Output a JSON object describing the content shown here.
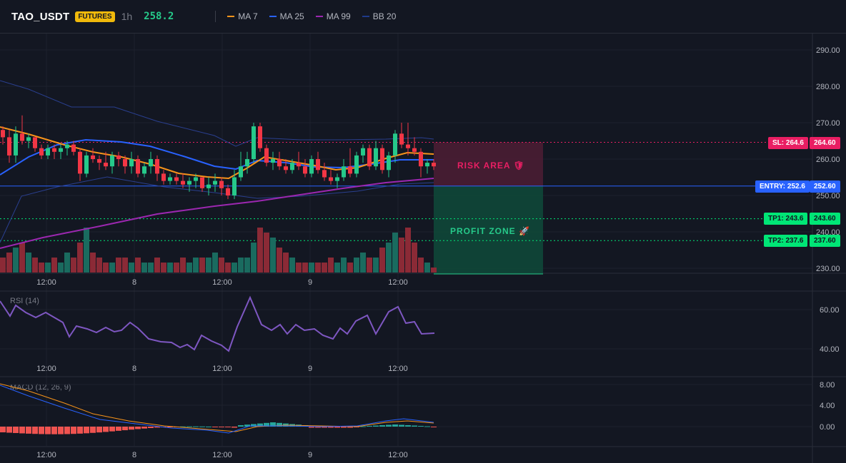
{
  "header": {
    "symbol": "TAO_USDT",
    "badge": "FUTURES",
    "timeframe": "1h",
    "last_price": "258.2"
  },
  "legend": [
    {
      "label": "MA 7",
      "color": "#f7931a"
    },
    {
      "label": "MA 25",
      "color": "#2962ff"
    },
    {
      "label": "MA 99",
      "color": "#9c27b0"
    },
    {
      "label": "BB 20",
      "color": "#1e3a8a"
    }
  ],
  "colors": {
    "up": "#26c98a",
    "down": "#f23645",
    "vol_up": "#1a6b5f",
    "vol_down": "#8b2a36",
    "sl": "#e91e63",
    "entry": "#2962ff",
    "tp": "#00e676"
  },
  "price_axis": {
    "labels": [
      "290.00",
      "280.00",
      "270.00",
      "260.00",
      "250.00",
      "240.00",
      "230.00"
    ]
  },
  "levels": {
    "sl": {
      "label": "SL: 264.6",
      "value": "264.60",
      "price": 264.6
    },
    "entry": {
      "label": "ENTRY: 252.6",
      "value": "252.60",
      "price": 252.6
    },
    "tp1": {
      "label": "TP1: 243.6",
      "value": "243.60",
      "price": 243.6
    },
    "tp2": {
      "label": "TP2: 237.6",
      "value": "237.60",
      "price": 237.6
    }
  },
  "zones": {
    "risk": "RISK AREA 🛡",
    "profit": "PROFIT ZONE 🚀"
  },
  "time_axis": [
    "12:00",
    "8",
    "12:00",
    "9",
    "12:00"
  ],
  "rsi": {
    "title": "RSI (14)",
    "axis": [
      "60.00",
      "40.00"
    ]
  },
  "macd": {
    "title": "MACD (12, 26, 9)",
    "axis": [
      "8.00",
      "4.00",
      "0.00"
    ]
  },
  "chart_data": {
    "type": "candlestick",
    "candles": [
      [
        268,
        269,
        264,
        266
      ],
      [
        266,
        268,
        259,
        261
      ],
      [
        261,
        269,
        259,
        267
      ],
      [
        267,
        272,
        264,
        265
      ],
      [
        265,
        267,
        263,
        266
      ],
      [
        266,
        266,
        262,
        263
      ],
      [
        263,
        264,
        260,
        261
      ],
      [
        261,
        264,
        260,
        263
      ],
      [
        263,
        264,
        260,
        262
      ],
      [
        262,
        264,
        260,
        263
      ],
      [
        263,
        265,
        261,
        264
      ],
      [
        264,
        265,
        261,
        262
      ],
      [
        262,
        263,
        254,
        256
      ],
      [
        256,
        262,
        255,
        261
      ],
      [
        261,
        263,
        259,
        260
      ],
      [
        260,
        261,
        257,
        259
      ],
      [
        259,
        262,
        257,
        258
      ],
      [
        258,
        262,
        256,
        261
      ],
      [
        261,
        262,
        258,
        260
      ],
      [
        260,
        261,
        256,
        258
      ],
      [
        258,
        262,
        256,
        260
      ],
      [
        260,
        261,
        255,
        256
      ],
      [
        256,
        259,
        255,
        258
      ],
      [
        258,
        262,
        256,
        260
      ],
      [
        260,
        261,
        254,
        256
      ],
      [
        256,
        257,
        253,
        254
      ],
      [
        254,
        256,
        253,
        255
      ],
      [
        255,
        256,
        253,
        254
      ],
      [
        254,
        256,
        252,
        253
      ],
      [
        253,
        255,
        251,
        254
      ],
      [
        254,
        256,
        252,
        255
      ],
      [
        255,
        255,
        251,
        252
      ],
      [
        252,
        255,
        250,
        253
      ],
      [
        253,
        256,
        251,
        254
      ],
      [
        254,
        255,
        250,
        252
      ],
      [
        252,
        253,
        249,
        250
      ],
      [
        250,
        257,
        249,
        255
      ],
      [
        255,
        262,
        254,
        258
      ],
      [
        258,
        262,
        256,
        260
      ],
      [
        260,
        270,
        259,
        269
      ],
      [
        269,
        270,
        262,
        263
      ],
      [
        263,
        264,
        258,
        259
      ],
      [
        259,
        262,
        257,
        260
      ],
      [
        260,
        262,
        257,
        258
      ],
      [
        258,
        260,
        256,
        257
      ],
      [
        257,
        260,
        256,
        259
      ],
      [
        259,
        262,
        257,
        258
      ],
      [
        258,
        260,
        255,
        256
      ],
      [
        256,
        261,
        255,
        260
      ],
      [
        260,
        262,
        256,
        257
      ],
      [
        257,
        259,
        254,
        255
      ],
      [
        255,
        257,
        253,
        254
      ],
      [
        254,
        256,
        252,
        255
      ],
      [
        255,
        260,
        254,
        258
      ],
      [
        258,
        263,
        255,
        256
      ],
      [
        256,
        262,
        255,
        261
      ],
      [
        261,
        264,
        259,
        263
      ],
      [
        263,
        264,
        257,
        258
      ],
      [
        258,
        265,
        257,
        263
      ],
      [
        263,
        264,
        256,
        257
      ],
      [
        257,
        262,
        255,
        261
      ],
      [
        261,
        268,
        259,
        267
      ],
      [
        267,
        270,
        263,
        264
      ],
      [
        264,
        270,
        261,
        263
      ],
      [
        263,
        266,
        261,
        262
      ],
      [
        262,
        263,
        255,
        258
      ],
      [
        258,
        260,
        256,
        259
      ],
      [
        259,
        260,
        257,
        258
      ]
    ],
    "volume": [
      3,
      4,
      5,
      6,
      4,
      3,
      2,
      2,
      3,
      2,
      4,
      3,
      6,
      9,
      4,
      3,
      2,
      2,
      3,
      3,
      2,
      3,
      2,
      2,
      3,
      2,
      2,
      2,
      3,
      2,
      3,
      3,
      3,
      4,
      3,
      2,
      2,
      3,
      3,
      6,
      9,
      8,
      7,
      5,
      4,
      3,
      2,
      2,
      2,
      2,
      2,
      3,
      2,
      3,
      2,
      3,
      4,
      3,
      3,
      5,
      6,
      8,
      7,
      9,
      6,
      3,
      2,
      1
    ],
    "y_range": [
      230,
      295
    ]
  }
}
